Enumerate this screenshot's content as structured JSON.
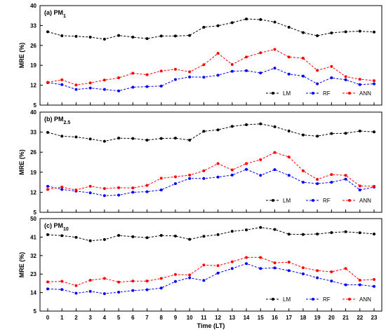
{
  "chart_data": [
    {
      "type": "line",
      "title": "(a) PM",
      "title_sub": "1",
      "ylabel": "MRE (%)",
      "xlabel": "",
      "ylim": [
        5,
        40
      ],
      "yticks": [
        5,
        12,
        19,
        26,
        33,
        40
      ],
      "x": [
        0,
        1,
        2,
        3,
        4,
        5,
        6,
        7,
        8,
        9,
        10,
        11,
        12,
        13,
        14,
        15,
        16,
        17,
        18,
        19,
        20,
        21,
        22,
        23
      ],
      "legend_position": "bottom-right",
      "series": [
        {
          "name": "LM",
          "color": "#000000",
          "values": [
            30.8,
            29.4,
            29.2,
            28.9,
            28.2,
            29.5,
            28.9,
            28.4,
            29.3,
            29.3,
            29.5,
            32.4,
            32.9,
            34.0,
            35.3,
            35.1,
            34.2,
            32.4,
            30.5,
            29.4,
            30.4,
            30.8,
            31.0,
            30.7
          ]
        },
        {
          "name": "RF",
          "color": "#0000ff",
          "values": [
            12.9,
            12.2,
            10.5,
            11.0,
            10.5,
            10.0,
            11.3,
            11.5,
            11.7,
            14.0,
            14.9,
            14.8,
            15.5,
            16.9,
            17.1,
            16.3,
            18.0,
            15.9,
            15.2,
            12.5,
            14.6,
            13.9,
            12.2,
            12.5
          ]
        },
        {
          "name": "ANN",
          "color": "#ff0000",
          "values": [
            13.0,
            13.9,
            12.1,
            12.8,
            13.8,
            14.6,
            16.2,
            15.7,
            17.0,
            17.6,
            16.7,
            19.2,
            23.2,
            19.3,
            21.9,
            23.4,
            24.6,
            21.9,
            21.5,
            17.2,
            18.6,
            15.0,
            14.1,
            13.6
          ]
        }
      ]
    },
    {
      "type": "line",
      "title": "(b) PM",
      "title_sub": "2.5",
      "ylabel": "MRE (%)",
      "xlabel": "",
      "ylim": [
        5,
        40
      ],
      "yticks": [
        5,
        12,
        19,
        26,
        33,
        40
      ],
      "x": [
        0,
        1,
        2,
        3,
        4,
        5,
        6,
        7,
        8,
        9,
        10,
        11,
        12,
        13,
        14,
        15,
        16,
        17,
        18,
        19,
        20,
        21,
        22,
        23
      ],
      "legend_position": "bottom-right",
      "series": [
        {
          "name": "LM",
          "color": "#000000",
          "values": [
            32.9,
            31.6,
            31.3,
            30.6,
            29.8,
            30.9,
            30.8,
            30.2,
            30.8,
            30.9,
            30.2,
            33.3,
            33.8,
            35.0,
            35.6,
            35.9,
            34.9,
            33.4,
            32.0,
            31.6,
            32.5,
            32.6,
            33.4,
            33.1
          ]
        },
        {
          "name": "RF",
          "color": "#0000ff",
          "values": [
            14.1,
            13.0,
            12.4,
            11.8,
            10.8,
            11.0,
            12.0,
            12.2,
            12.8,
            15.0,
            16.8,
            16.8,
            17.3,
            18.0,
            20.0,
            17.9,
            19.9,
            17.9,
            15.5,
            15.0,
            15.5,
            16.6,
            12.8,
            13.8
          ]
        },
        {
          "name": "ANN",
          "color": "#ff0000",
          "values": [
            13.0,
            13.8,
            12.8,
            14.1,
            13.3,
            13.6,
            13.5,
            14.4,
            16.9,
            17.4,
            18.0,
            19.5,
            22.0,
            19.8,
            22.0,
            23.4,
            25.9,
            24.3,
            19.5,
            16.5,
            18.2,
            17.9,
            14.2,
            14.1
          ]
        }
      ]
    },
    {
      "type": "line",
      "title": "(c) PM",
      "title_sub": "10",
      "ylabel": "MRE (%)",
      "xlabel": "Time (LT)",
      "ylim": [
        5,
        50
      ],
      "yticks": [
        5,
        14,
        23,
        32,
        41,
        50
      ],
      "x": [
        0,
        1,
        2,
        3,
        4,
        5,
        6,
        7,
        8,
        9,
        10,
        11,
        12,
        13,
        14,
        15,
        16,
        17,
        18,
        19,
        20,
        21,
        22,
        23
      ],
      "legend_position": "bottom-right",
      "series": [
        {
          "name": "LM",
          "color": "#000000",
          "values": [
            42.2,
            41.7,
            40.9,
            39.2,
            39.8,
            41.8,
            41.2,
            40.7,
            41.8,
            41.5,
            39.9,
            41.4,
            42.2,
            43.8,
            44.5,
            45.7,
            44.7,
            42.4,
            42.3,
            42.5,
            43.2,
            43.6,
            43.1,
            42.5
          ]
        },
        {
          "name": "RF",
          "color": "#0000ff",
          "values": [
            15.8,
            15.5,
            13.7,
            14.6,
            13.5,
            14.2,
            15.0,
            15.4,
            16.2,
            19.4,
            21.2,
            19.9,
            23.5,
            25.7,
            28.1,
            25.7,
            26.0,
            24.7,
            23.1,
            21.2,
            19.6,
            17.8,
            17.8,
            17.0
          ]
        },
        {
          "name": "ANN",
          "color": "#ff0000",
          "values": [
            19.2,
            19.5,
            17.4,
            20.0,
            20.9,
            19.1,
            19.6,
            19.6,
            20.9,
            22.8,
            22.6,
            27.4,
            27.1,
            29.0,
            31.1,
            31.1,
            28.5,
            28.8,
            26.1,
            24.7,
            24.1,
            25.7,
            20.0,
            20.4
          ]
        }
      ]
    }
  ],
  "x_tick_labels": [
    "0",
    "1",
    "2",
    "3",
    "4",
    "5",
    "6",
    "7",
    "8",
    "9",
    "10",
    "11",
    "12",
    "13",
    "14",
    "15",
    "16",
    "17",
    "18",
    "19",
    "20",
    "21",
    "22",
    "23"
  ]
}
